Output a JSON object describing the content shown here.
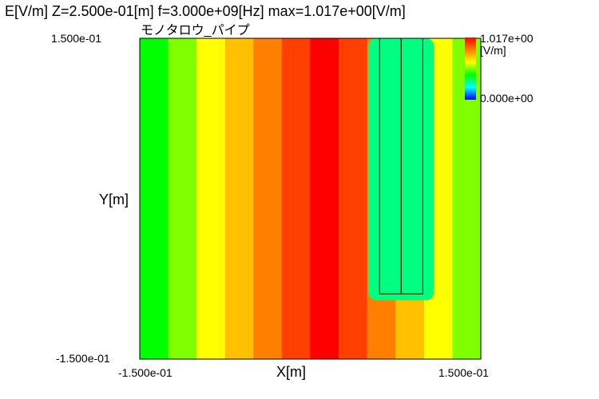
{
  "chart_data": {
    "type": "heatmap",
    "title": "E[V/m] Z=2.500e-01[m] f=3.000e+09[Hz] max=1.017e+00[V/m]",
    "subtitle": "モノタロウ_パイプ",
    "xlabel": "X[m]",
    "ylabel": "Y[m]",
    "x_ticks": [
      "-1.500e-01",
      "1.500e-01"
    ],
    "y_ticks": [
      "1.500e-01",
      "-1.500e-01"
    ],
    "xlim": [
      -0.15,
      0.15
    ],
    "ylim": [
      -0.15,
      0.15
    ],
    "colorbar": {
      "max_label": "1.017e+00",
      "min_label": "0.000e+00",
      "unit": "[V/m]",
      "range": [
        0,
        1.017
      ],
      "colors": [
        "#0000ff",
        "#0080ff",
        "#00ffff",
        "#00ff80",
        "#00ff00",
        "#80ff00",
        "#ffff00",
        "#ffc000",
        "#ff8000",
        "#ff4000",
        "#ff0000"
      ]
    },
    "band_levels": [
      0.44,
      0.53,
      0.62,
      0.7,
      0.76,
      0.84,
      0.96,
      0.84,
      0.76,
      0.7,
      0.62,
      0.53
    ],
    "pipe_band_level": 0.3,
    "pipe_region": {
      "x": [
        0.061,
        0.099
      ],
      "y": [
        -0.089,
        0.15
      ]
    }
  }
}
